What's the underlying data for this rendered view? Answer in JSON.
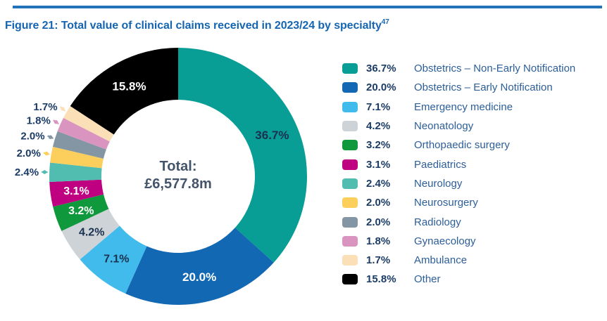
{
  "title": {
    "text": "Figure 21: Total value of clinical claims received in 2023/24 by specialty",
    "footnote_marker": "47"
  },
  "accent_colors": {
    "rule": "#2273B9",
    "title": "#1565B1",
    "legend_percent": "#1B3C66",
    "legend_label": "#2C5E99",
    "center_text": "#44546A",
    "inside_label_dark": "#1A3150"
  },
  "chart_data": {
    "type": "pie",
    "subtype": "donut",
    "title": "Figure 21: Total value of clinical claims received in 2023/24 by specialty",
    "total_label": "Total:",
    "total_value": "£6,577.8m",
    "start_angle_deg": 0,
    "direction": "clockwise",
    "legend_position": "right",
    "units": "%",
    "segments": [
      {
        "label": "Obstetrics – Non-Early Notification",
        "value": 36.7,
        "display": "36.7%",
        "color": "#089E96",
        "label_placement": "inside",
        "label_color": "#1A3150"
      },
      {
        "label": "Obstetrics – Early Notification",
        "value": 20.0,
        "display": "20.0%",
        "color": "#1268B2",
        "label_placement": "inside",
        "label_color": "#FFFFFF"
      },
      {
        "label": "Emergency medicine",
        "value": 7.1,
        "display": "7.1%",
        "color": "#41BBEC",
        "label_placement": "inside",
        "label_color": "#1A3150"
      },
      {
        "label": "Neonatology",
        "value": 4.2,
        "display": "4.2%",
        "color": "#CED3D8",
        "label_placement": "inside",
        "label_color": "#1A3150"
      },
      {
        "label": "Orthopaedic surgery",
        "value": 3.2,
        "display": "3.2%",
        "color": "#10983C",
        "label_placement": "inside",
        "label_color": "#FFFFFF"
      },
      {
        "label": "Paediatrics",
        "value": 3.1,
        "display": "3.1%",
        "color": "#BF0080",
        "label_placement": "inside",
        "label_color": "#FFFFFF"
      },
      {
        "label": "Neurology",
        "value": 2.4,
        "display": "2.4%",
        "color": "#50BDB0",
        "label_placement": "outside",
        "label_color": "#1B3C66"
      },
      {
        "label": "Neurosurgery",
        "value": 2.0,
        "display": "2.0%",
        "color": "#FCCF5C",
        "label_placement": "outside",
        "label_color": "#1B3C66"
      },
      {
        "label": "Radiology",
        "value": 2.0,
        "display": "2.0%",
        "color": "#8496A4",
        "label_placement": "outside",
        "label_color": "#1B3C66"
      },
      {
        "label": "Gynaecology",
        "value": 1.8,
        "display": "1.8%",
        "color": "#D995BF",
        "label_placement": "outside",
        "label_color": "#1B3C66"
      },
      {
        "label": "Ambulance",
        "value": 1.7,
        "display": "1.7%",
        "color": "#FBDFB6",
        "label_placement": "outside",
        "label_color": "#1B3C66"
      },
      {
        "label": "Other",
        "value": 15.8,
        "display": "15.8%",
        "color": "#000000",
        "label_placement": "inside",
        "label_color": "#FFFFFF"
      }
    ]
  }
}
